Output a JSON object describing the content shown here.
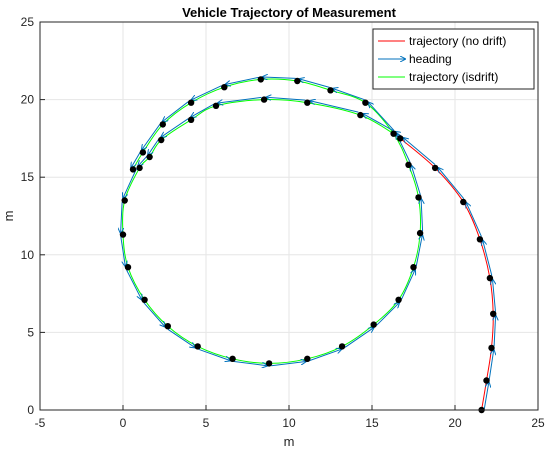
{
  "chart_data": {
    "type": "line",
    "title": "Vehicle Trajectory of Measurement",
    "xlabel": "m",
    "ylabel": "m",
    "xlim": [
      -5,
      25
    ],
    "ylim": [
      0,
      25
    ],
    "x_ticks": [
      "-5",
      "0",
      "5",
      "10",
      "15",
      "20",
      "25"
    ],
    "y_ticks": [
      "0",
      "5",
      "10",
      "15",
      "20",
      "25"
    ],
    "grid": true,
    "legend_position": "top-right",
    "colors": {
      "trajectory_no_drift": "#ff0000",
      "heading": "#0072bd",
      "trajectory_isdrift": "#00ff00",
      "points": "#000000",
      "grid": "#e6e6e6",
      "axes": "#262626"
    },
    "series": [
      {
        "name": "trajectory (no drift)",
        "points": [
          [
            21.6,
            0.0
          ],
          [
            21.9,
            1.9
          ],
          [
            22.2,
            4.0
          ],
          [
            22.3,
            6.2
          ],
          [
            22.1,
            8.5
          ],
          [
            21.5,
            11.0
          ],
          [
            20.5,
            13.4
          ],
          [
            18.8,
            15.6
          ],
          [
            16.7,
            17.5
          ],
          [
            16.3,
            17.8
          ]
        ]
      },
      {
        "name": "heading",
        "arrows_at": "each measurement point, tangent to the path"
      },
      {
        "name": "trajectory (isdrift)",
        "points": [
          [
            16.3,
            17.8
          ],
          [
            14.3,
            19.0
          ],
          [
            11.1,
            19.8
          ],
          [
            8.5,
            20.0
          ],
          [
            5.6,
            19.6
          ],
          [
            4.1,
            18.7
          ],
          [
            2.3,
            17.4
          ],
          [
            1.6,
            16.3
          ],
          [
            1.0,
            15.6
          ],
          [
            0.1,
            13.5
          ],
          [
            0.0,
            11.3
          ],
          [
            0.3,
            9.2
          ],
          [
            1.3,
            7.1
          ],
          [
            2.7,
            5.4
          ],
          [
            4.5,
            4.1
          ],
          [
            6.6,
            3.3
          ],
          [
            8.8,
            3.0
          ],
          [
            11.1,
            3.3
          ],
          [
            13.2,
            4.1
          ],
          [
            15.1,
            5.5
          ],
          [
            16.6,
            7.1
          ],
          [
            17.5,
            9.2
          ],
          [
            17.9,
            11.4
          ],
          [
            17.8,
            13.7
          ],
          [
            17.2,
            15.8
          ],
          [
            16.3,
            17.8
          ],
          [
            14.6,
            19.8
          ],
          [
            12.5,
            20.6
          ],
          [
            10.5,
            21.2
          ],
          [
            8.3,
            21.3
          ],
          [
            6.1,
            20.8
          ],
          [
            4.1,
            19.8
          ],
          [
            2.4,
            18.4
          ],
          [
            1.2,
            16.6
          ],
          [
            0.6,
            15.5
          ]
        ]
      }
    ]
  }
}
